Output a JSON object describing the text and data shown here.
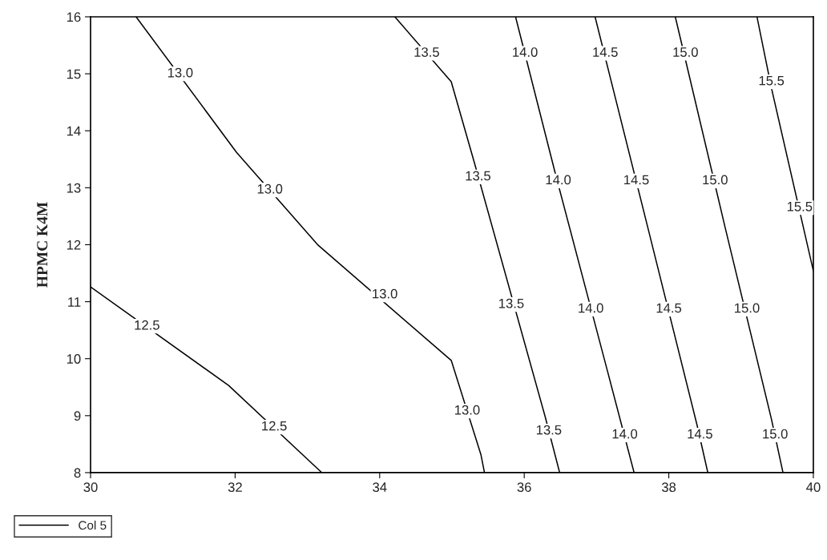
{
  "chart_data": {
    "type": "line",
    "ylabel": "HPMC K4M",
    "xlim": [
      30,
      40
    ],
    "ylim": [
      8,
      16
    ],
    "xticks": [
      30,
      32,
      34,
      36,
      38,
      40
    ],
    "yticks": [
      8,
      9,
      10,
      11,
      12,
      13,
      14,
      15,
      16
    ],
    "grid": false,
    "legend": "bottom left",
    "marker": "none",
    "line_style": "solid",
    "series": [
      {
        "name": "Col 5",
        "color": "#000000",
        "x": [
          30,
          31.91,
          33.2
        ],
        "values": [
          11.26,
          9.53,
          8
        ]
      },
      {
        "color": "#000000",
        "x": [
          30.63,
          32.02,
          33.15,
          34.99,
          35.4,
          35.45
        ],
        "values": [
          16,
          13.62,
          11.99,
          9.97,
          8.32,
          8
        ]
      },
      {
        "color": "#000000",
        "x": [
          34.21,
          34.99,
          35.31,
          36.29,
          36.49
        ],
        "values": [
          16,
          14.86,
          13.44,
          8.98,
          8
        ]
      },
      {
        "color": "#000000",
        "x": [
          35.88,
          36.43,
          37.15,
          37.52
        ],
        "values": [
          16,
          13.25,
          9.79,
          8
        ]
      },
      {
        "color": "#000000",
        "x": [
          36.98,
          37.71,
          38.39,
          38.54
        ],
        "values": [
          16,
          12.3,
          8.84,
          8
        ]
      },
      {
        "color": "#000000",
        "x": [
          38.09,
          38.78,
          39.42,
          39.58
        ],
        "values": [
          16,
          12.3,
          8.94,
          8
        ]
      },
      {
        "color": "#000000",
        "x": [
          39.22,
          39.42,
          40
        ],
        "values": [
          16,
          14.75,
          11.54
        ]
      }
    ],
    "annotations": [
      {
        "text": "12.5",
        "x": 30.78,
        "y": 10.57
      },
      {
        "text": "12.5",
        "x": 32.54,
        "y": 8.8
      },
      {
        "text": "13.0",
        "x": 31.24,
        "y": 15.0
      },
      {
        "text": "13.0",
        "x": 32.48,
        "y": 12.96
      },
      {
        "text": "13.0",
        "x": 34.07,
        "y": 11.12
      },
      {
        "text": "13.0",
        "x": 35.21,
        "y": 9.08
      },
      {
        "text": "13.5",
        "x": 34.65,
        "y": 15.36
      },
      {
        "text": "13.5",
        "x": 35.36,
        "y": 13.19
      },
      {
        "text": "13.5",
        "x": 35.82,
        "y": 10.95
      },
      {
        "text": "13.5",
        "x": 36.34,
        "y": 8.73
      },
      {
        "text": "14.0",
        "x": 36.01,
        "y": 15.36
      },
      {
        "text": "14.0",
        "x": 36.47,
        "y": 13.12
      },
      {
        "text": "14.0",
        "x": 36.92,
        "y": 10.87
      },
      {
        "text": "14.0",
        "x": 37.39,
        "y": 8.66
      },
      {
        "text": "14.5",
        "x": 37.12,
        "y": 15.36
      },
      {
        "text": "14.5",
        "x": 37.55,
        "y": 13.12
      },
      {
        "text": "14.5",
        "x": 38.0,
        "y": 10.87
      },
      {
        "text": "14.5",
        "x": 38.43,
        "y": 8.66
      },
      {
        "text": "15.0",
        "x": 38.23,
        "y": 15.36
      },
      {
        "text": "15.0",
        "x": 38.64,
        "y": 13.12
      },
      {
        "text": "15.0",
        "x": 39.08,
        "y": 10.87
      },
      {
        "text": "15.0",
        "x": 39.47,
        "y": 8.66
      },
      {
        "text": "15.5",
        "x": 39.42,
        "y": 14.86
      },
      {
        "text": "15.5",
        "x": 39.81,
        "y": 12.65
      }
    ]
  }
}
